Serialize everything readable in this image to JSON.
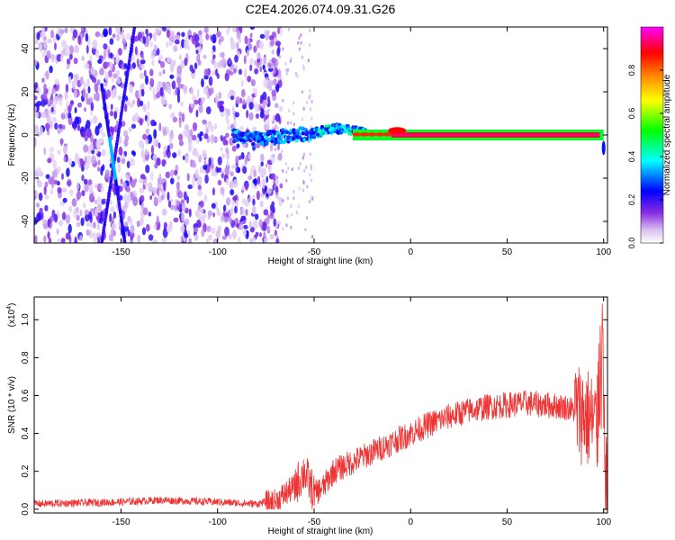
{
  "title": "C2E4.2026.074.09.31.G26",
  "chart_data": [
    {
      "type": "heatmap",
      "xlabel": "Height of straight line (km)",
      "ylabel": "Frequency (Hz)",
      "xlim": [
        -195,
        102
      ],
      "ylim": [
        -50,
        50
      ],
      "xticks": [
        -150,
        -100,
        -50,
        0,
        50,
        100
      ],
      "yticks": [
        -40,
        -20,
        0,
        20,
        40
      ],
      "colorbar": {
        "label": "Normalized spectral amplitude",
        "ticks": [
          0.0,
          0.2,
          0.4,
          0.6,
          0.8
        ],
        "tick_labels": [
          "0.0",
          "0.2",
          "0.4",
          "0.6",
          "0.8"
        ],
        "range": [
          0.0,
          1.0
        ],
        "colors": [
          "#ffffff",
          "#d8c0f0",
          "#8a2be2",
          "#0000ff",
          "#00ffff",
          "#00ff00",
          "#ffff00",
          "#ff8000",
          "#ff0000",
          "#ff00ff"
        ]
      },
      "features": {
        "noise_region_km": [
          -195,
          -75
        ],
        "diagonal_tracks": [
          {
            "x_start": -160,
            "y_start": -50,
            "x_end": -143,
            "y_end": 50
          },
          {
            "x_start": -148,
            "y_start": -50,
            "x_end": -160,
            "y_end": 23
          }
        ],
        "ridge": [
          [
            -92,
            0
          ],
          [
            -80,
            -2
          ],
          [
            -70,
            -1
          ],
          [
            -60,
            0
          ],
          [
            -50,
            1
          ],
          [
            -40,
            3
          ],
          [
            -30,
            2
          ],
          [
            -20,
            0
          ],
          [
            -10,
            1
          ],
          [
            0,
            2
          ],
          [
            10,
            0
          ],
          [
            50,
            0
          ],
          [
            100,
            0
          ]
        ]
      }
    },
    {
      "type": "line",
      "xlabel": "Height of straight line (km)",
      "ylabel": "SNR (10 * v/v)",
      "exponent_label": "(x10",
      "exponent_power": "4",
      "exponent_close": ")",
      "xlim": [
        -195,
        102
      ],
      "ylim": [
        -0.02,
        1.12
      ],
      "xticks": [
        -150,
        -100,
        -50,
        0,
        50,
        100
      ],
      "yticks": [
        0.0,
        0.2,
        0.4,
        0.6,
        0.8,
        1.0
      ],
      "ytick_labels": [
        "0.0",
        "0.2",
        "0.4",
        "0.6",
        "0.8",
        "1.0"
      ],
      "series": [
        {
          "name": "SNR",
          "color": "#ee3333",
          "envelope": [
            [
              -195,
              0.02
            ],
            [
              -150,
              0.03
            ],
            [
              -130,
              0.04
            ],
            [
              -100,
              0.03
            ],
            [
              -80,
              0.02
            ],
            [
              -70,
              0.04
            ],
            [
              -60,
              0.12
            ],
            [
              -55,
              0.2
            ],
            [
              -50,
              0.08
            ],
            [
              -45,
              0.12
            ],
            [
              -40,
              0.2
            ],
            [
              -30,
              0.25
            ],
            [
              -20,
              0.3
            ],
            [
              -10,
              0.35
            ],
            [
              0,
              0.4
            ],
            [
              10,
              0.45
            ],
            [
              20,
              0.49
            ],
            [
              30,
              0.52
            ],
            [
              40,
              0.54
            ],
            [
              50,
              0.55
            ],
            [
              60,
              0.56
            ],
            [
              70,
              0.55
            ],
            [
              80,
              0.54
            ],
            [
              90,
              0.5
            ],
            [
              95,
              0.45
            ],
            [
              100,
              0.4
            ],
            [
              102,
              0.05
            ]
          ]
        }
      ]
    }
  ]
}
